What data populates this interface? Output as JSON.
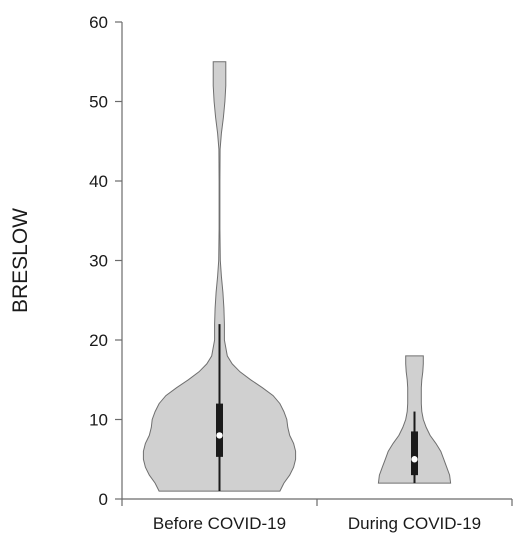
{
  "chart_data": {
    "type": "violin",
    "title": "",
    "xlabel": "",
    "ylabel": "BRESLOW",
    "ylim": [
      0,
      60
    ],
    "yticks": [
      0,
      10,
      20,
      30,
      40,
      50,
      60
    ],
    "grid": false,
    "categories": [
      "Before COVID-19",
      "During COVID-19"
    ],
    "series": [
      {
        "category": "Before COVID-19",
        "min": 1,
        "q1": 5.3,
        "median": 8,
        "q3": 12,
        "whisker_high": 22,
        "max": 55,
        "density_halfwidth": [
          [
            1,
            0.62
          ],
          [
            2,
            0.66
          ],
          [
            3,
            0.72
          ],
          [
            4,
            0.76
          ],
          [
            5,
            0.78
          ],
          [
            6,
            0.78
          ],
          [
            7,
            0.76
          ],
          [
            8,
            0.72
          ],
          [
            9,
            0.7
          ],
          [
            10,
            0.69
          ],
          [
            11,
            0.66
          ],
          [
            12,
            0.62
          ],
          [
            13,
            0.55
          ],
          [
            14,
            0.44
          ],
          [
            15,
            0.32
          ],
          [
            16,
            0.21
          ],
          [
            17,
            0.13
          ],
          [
            18,
            0.08
          ],
          [
            20,
            0.05
          ],
          [
            22,
            0.05
          ],
          [
            24,
            0.045
          ],
          [
            26,
            0.035
          ],
          [
            28,
            0.02
          ],
          [
            30,
            0.008
          ],
          [
            34,
            0.004
          ],
          [
            40,
            0.004
          ],
          [
            44,
            0.006
          ],
          [
            46,
            0.02
          ],
          [
            48,
            0.04
          ],
          [
            50,
            0.055
          ],
          [
            52,
            0.065
          ],
          [
            54,
            0.065
          ],
          [
            55,
            0.065
          ]
        ]
      },
      {
        "category": "During COVID-19",
        "min": 2,
        "q1": 3,
        "median": 5,
        "q3": 8.5,
        "whisker_high": 11,
        "max": 18,
        "density_halfwidth": [
          [
            2,
            0.37
          ],
          [
            3,
            0.36
          ],
          [
            4,
            0.33
          ],
          [
            5,
            0.3
          ],
          [
            6,
            0.27
          ],
          [
            7,
            0.22
          ],
          [
            8,
            0.16
          ],
          [
            9,
            0.12
          ],
          [
            10,
            0.09
          ],
          [
            11,
            0.075
          ],
          [
            12,
            0.07
          ],
          [
            13,
            0.07
          ],
          [
            14,
            0.07
          ],
          [
            15,
            0.075
          ],
          [
            16,
            0.085
          ],
          [
            17,
            0.09
          ],
          [
            18,
            0.09
          ]
        ]
      }
    ]
  }
}
